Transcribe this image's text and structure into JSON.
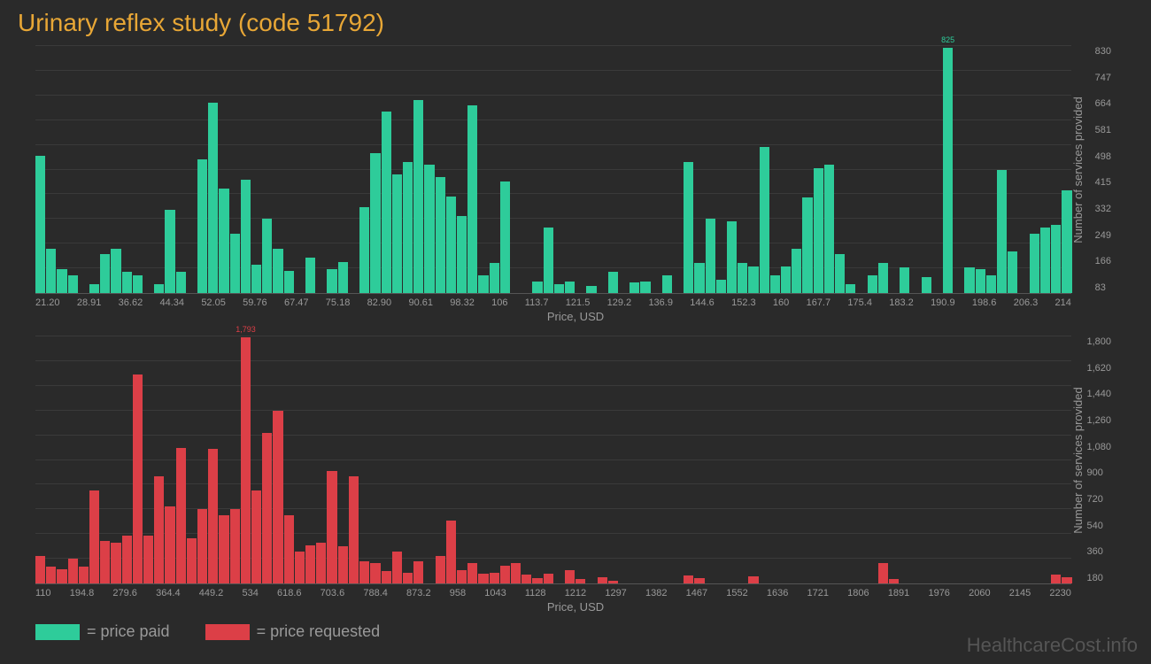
{
  "title": "Urinary reflex study (code 51792)",
  "watermark": "HealthcareCost.info",
  "x_axis_label": "Price, USD",
  "y_axis_label": "Number of services provided",
  "legend": {
    "paid": {
      "label": "= price paid",
      "color": "#2ecc9a"
    },
    "requested": {
      "label": "= price requested",
      "color": "#dc3f47"
    }
  },
  "chart_paid": {
    "type": "bar",
    "bar_color": "#2ecc9a",
    "background_color": "#2a2a2a",
    "max_value": 830,
    "max_label": "825",
    "x_ticks": [
      "21.20",
      "28.91",
      "36.62",
      "44.34",
      "52.05",
      "59.76",
      "67.47",
      "75.18",
      "82.90",
      "90.61",
      "98.32",
      "106",
      "113.7",
      "121.5",
      "129.2",
      "136.9",
      "144.6",
      "152.3",
      "160",
      "167.7",
      "175.4",
      "183.2",
      "190.9",
      "198.6",
      "206.3",
      "214"
    ],
    "y_ticks": [
      "83",
      "166",
      "249",
      "332",
      "415",
      "498",
      "581",
      "664",
      "747",
      "830"
    ],
    "values": [
      460,
      150,
      80,
      60,
      0,
      30,
      130,
      150,
      70,
      60,
      0,
      30,
      280,
      70,
      0,
      450,
      640,
      350,
      200,
      380,
      95,
      250,
      150,
      75,
      0,
      120,
      0,
      80,
      105,
      0,
      290,
      470,
      610,
      400,
      440,
      650,
      430,
      390,
      325,
      260,
      630,
      60,
      100,
      375,
      0,
      0,
      40,
      220,
      30,
      40,
      0,
      25,
      0,
      70,
      0,
      35,
      40,
      0,
      60,
      0,
      440,
      100,
      250,
      45,
      240,
      100,
      90,
      490,
      60,
      90,
      150,
      320,
      420,
      430,
      130,
      30,
      0,
      60,
      100,
      0,
      85,
      0,
      55,
      0,
      825,
      0,
      85,
      80,
      60,
      415,
      140,
      0,
      200,
      220,
      230,
      345
    ],
    "max_bar_index": 84
  },
  "chart_requested": {
    "type": "bar",
    "bar_color": "#dc3f47",
    "background_color": "#2a2a2a",
    "max_value": 1800,
    "max_label": "1,793",
    "x_ticks": [
      "110",
      "194.8",
      "279.6",
      "364.4",
      "449.2",
      "534",
      "618.6",
      "703.6",
      "788.4",
      "873.2",
      "958",
      "1043",
      "1128",
      "1212",
      "1297",
      "1382",
      "1467",
      "1552",
      "1636",
      "1721",
      "1806",
      "1891",
      "1976",
      "2060",
      "2145",
      "2230"
    ],
    "y_ticks": [
      "180",
      "360",
      "540",
      "720",
      "900",
      "1,080",
      "1,260",
      "1,440",
      "1,620",
      "1,800"
    ],
    "values": [
      200,
      120,
      105,
      180,
      125,
      680,
      310,
      300,
      350,
      1520,
      350,
      780,
      560,
      990,
      330,
      540,
      980,
      500,
      540,
      1793,
      680,
      1100,
      1260,
      500,
      230,
      280,
      300,
      820,
      270,
      780,
      160,
      150,
      90,
      230,
      80,
      160,
      0,
      200,
      455,
      100,
      150,
      70,
      80,
      130,
      150,
      65,
      40,
      70,
      0,
      100,
      35,
      0,
      45,
      20,
      0,
      0,
      0,
      0,
      0,
      0,
      60,
      40,
      0,
      0,
      0,
      0,
      50,
      0,
      0,
      0,
      0,
      0,
      0,
      0,
      0,
      0,
      0,
      0,
      150,
      30,
      0,
      0,
      0,
      0,
      0,
      0,
      0,
      0,
      0,
      0,
      0,
      0,
      0,
      0,
      65,
      45
    ],
    "max_bar_index": 19
  }
}
